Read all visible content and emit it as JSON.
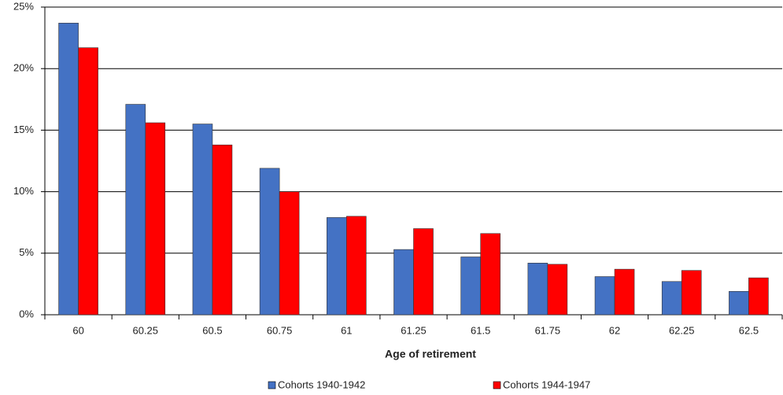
{
  "chart_data": {
    "type": "bar",
    "x_label": "Age of retirement",
    "categories": [
      "60",
      "60.25",
      "60.5",
      "60.75",
      "61",
      "61.25",
      "61.5",
      "61.75",
      "62",
      "62.25",
      "62.5"
    ],
    "series": [
      {
        "name": "Cohorts 1940-1942",
        "color": "#4472c4",
        "values": [
          23.7,
          17.1,
          15.5,
          11.9,
          7.9,
          5.3,
          4.7,
          4.2,
          3.1,
          2.7,
          1.9
        ]
      },
      {
        "name": "Cohorts 1944-1947",
        "color": "#ff0000",
        "values": [
          21.7,
          15.6,
          13.8,
          10.0,
          8.0,
          7.0,
          6.6,
          4.1,
          3.7,
          3.6,
          3.0
        ]
      }
    ],
    "ylim": [
      0,
      25
    ],
    "yticks": [
      {
        "value": 0,
        "label": "0%"
      },
      {
        "value": 5,
        "label": "5%"
      },
      {
        "value": 10,
        "label": "10%"
      },
      {
        "value": 15,
        "label": "15%"
      },
      {
        "value": 20,
        "label": "20%"
      },
      {
        "value": 25,
        "label": "25%"
      }
    ],
    "grid": true,
    "legend": "bottom"
  }
}
